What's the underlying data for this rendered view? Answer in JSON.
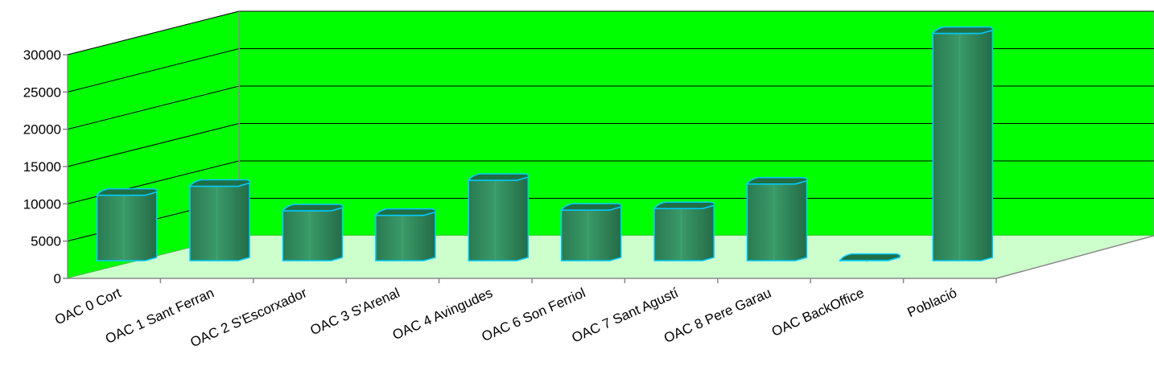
{
  "chart_data": {
    "type": "bar",
    "title": "",
    "xlabel": "",
    "ylabel": "",
    "categories": [
      "OAC 0 Cort",
      "OAC 1 Sant Ferran",
      "OAC 2 S'Escorxador",
      "OAC 3 S'Arenal",
      "OAC 4 Avingudes",
      "OAC 6 Son Ferriol",
      "OAC 7 Sant Agustí",
      "OAC 8 Pere Garau",
      "OAC BackOffice",
      "Població"
    ],
    "series": [
      {
        "values": [
          9000,
          10200,
          6900,
          6300,
          11000,
          7000,
          7200,
          10500,
          250,
          30700
        ]
      }
    ],
    "ylim": [
      0,
      30000
    ],
    "yticks": [
      "0",
      "5000",
      "10000",
      "15000",
      "20000",
      "25000",
      "30000"
    ],
    "grid": true,
    "legend": "none",
    "colors": {
      "back_wall": "#00ff00",
      "floor": "#ccffcc",
      "bar_body": "#2e8b57",
      "bar_top": "#1f6e44",
      "bar_outline": "#00ccff",
      "grid": "#000000"
    }
  }
}
